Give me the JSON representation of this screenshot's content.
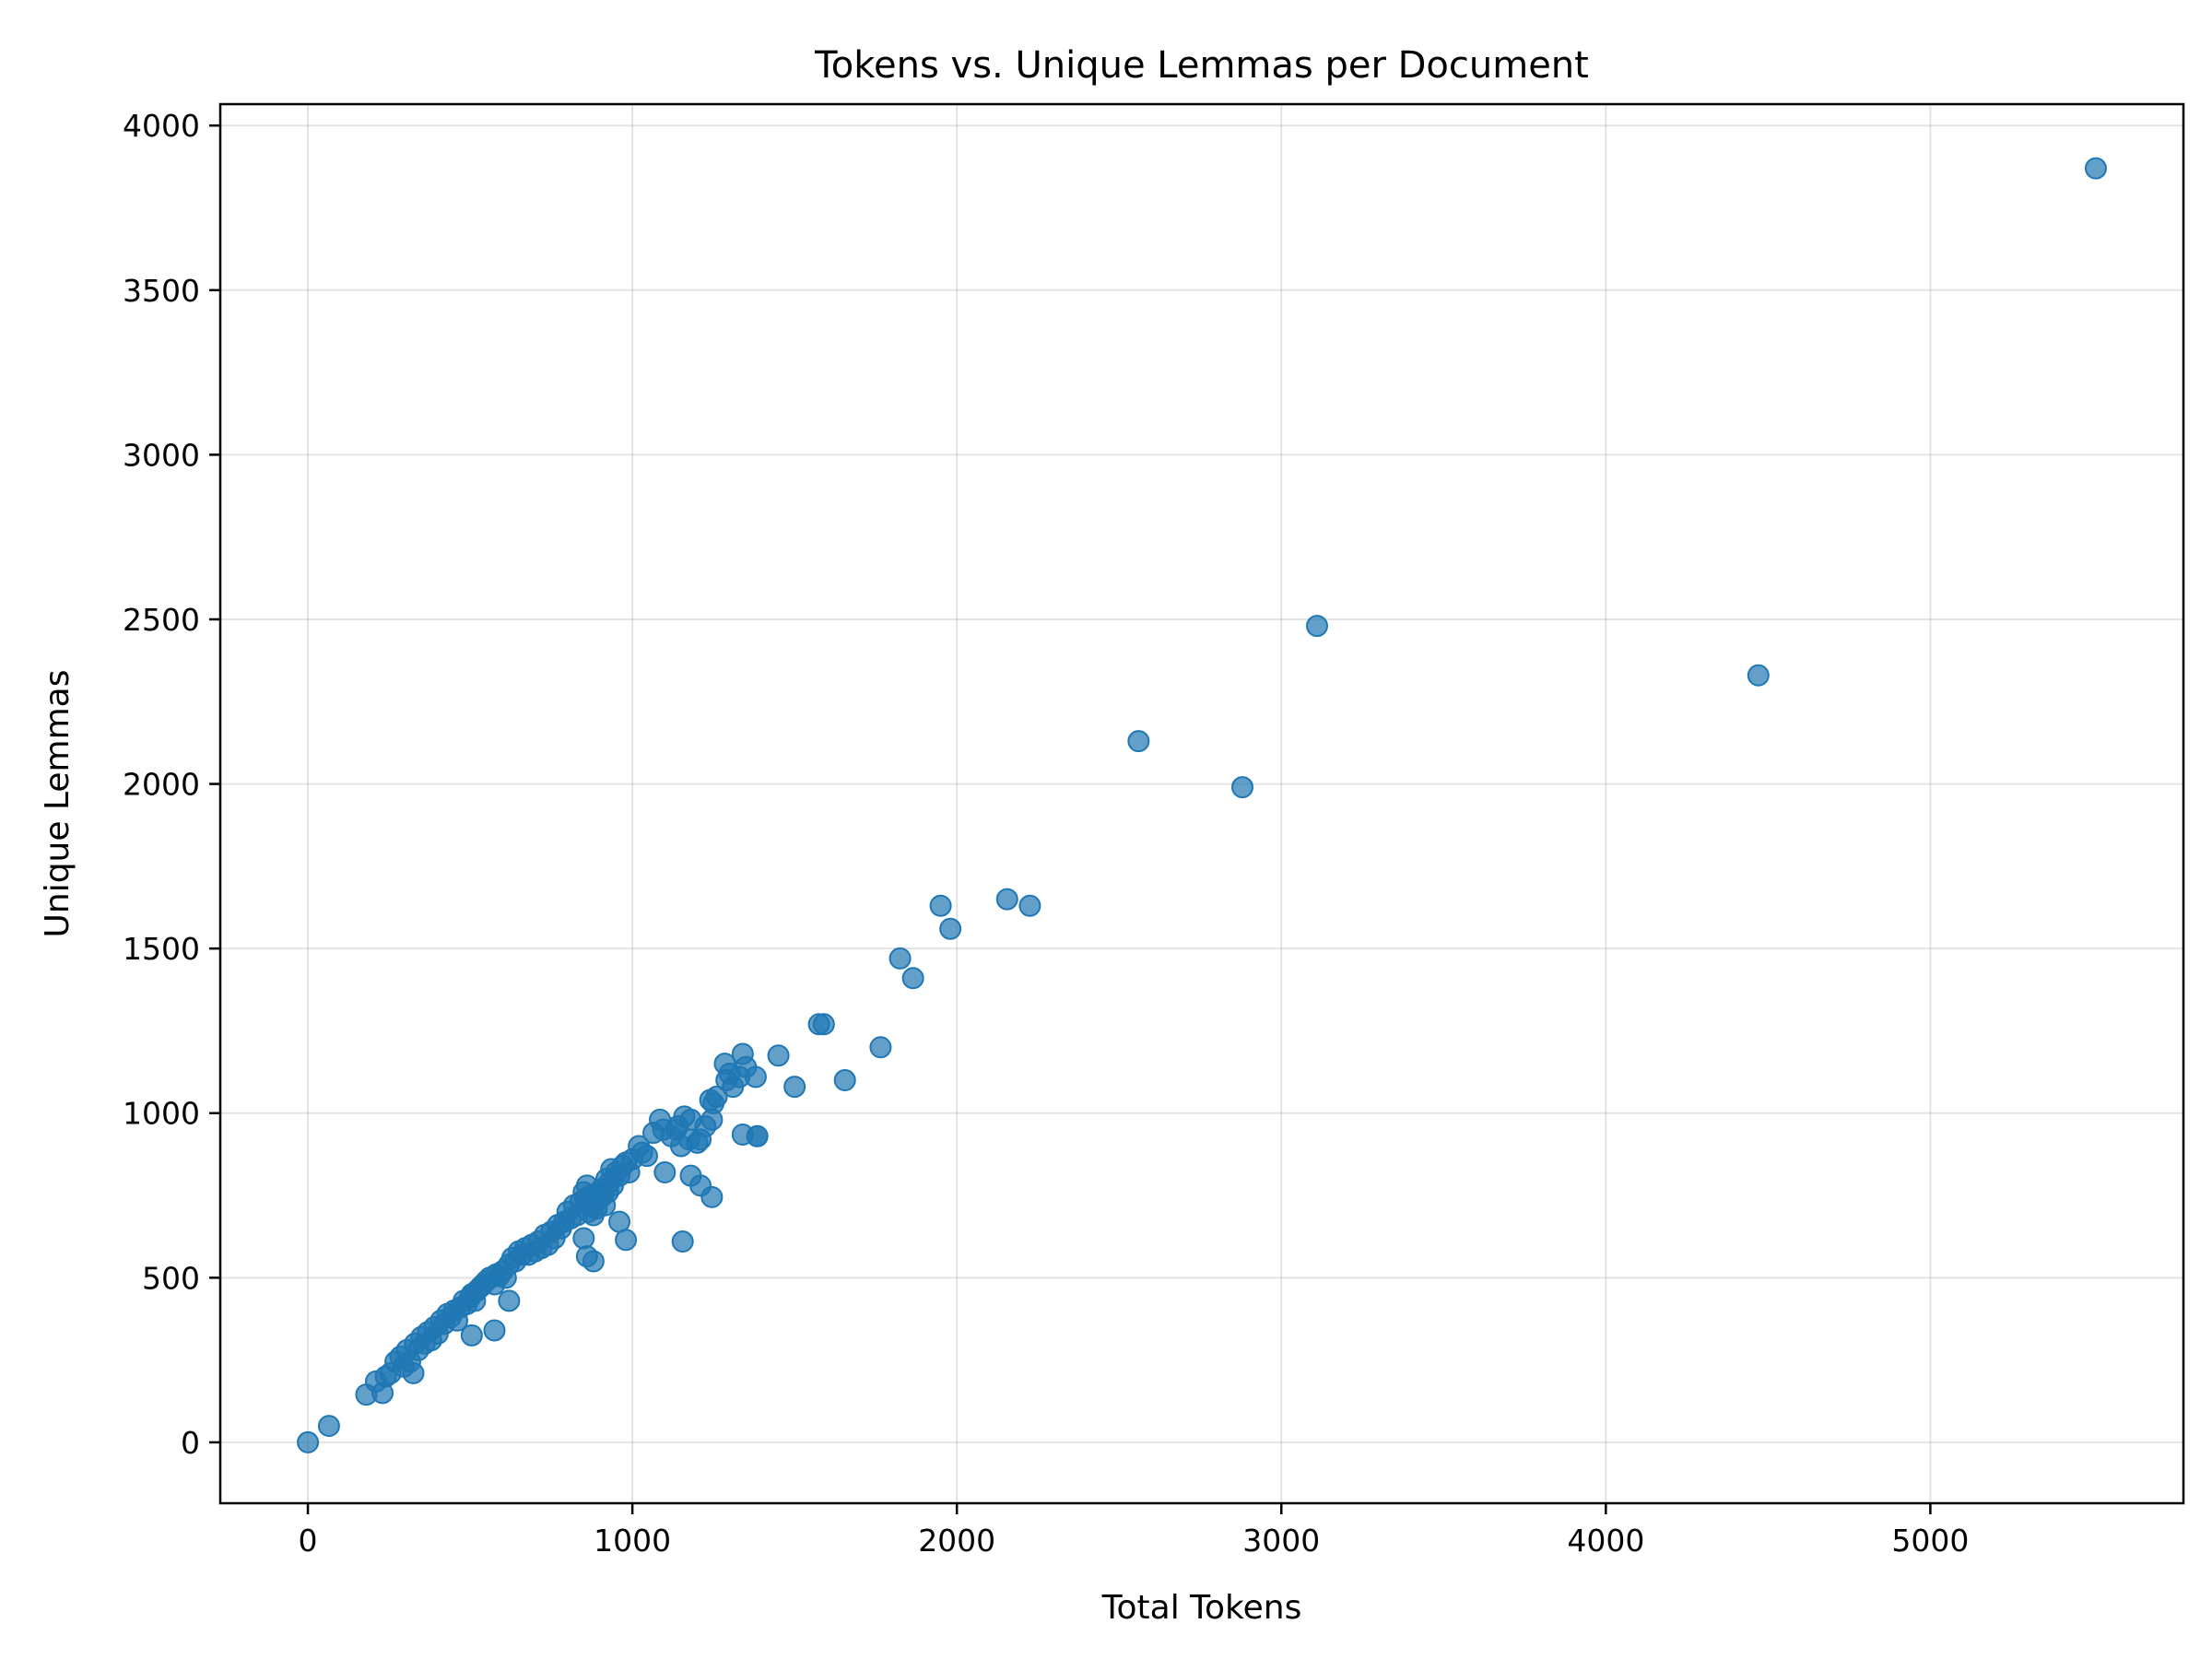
{
  "chart_data": {
    "type": "scatter",
    "title": "Tokens vs. Unique Lemmas per Document",
    "xlabel": "Total Tokens",
    "ylabel": "Unique Lemmas",
    "xlim": [
      -270,
      5780
    ],
    "ylim": [
      -185,
      4065
    ],
    "xticks": [
      0,
      1000,
      2000,
      3000,
      4000,
      5000
    ],
    "yticks": [
      0,
      500,
      1000,
      1500,
      2000,
      2500,
      3000,
      3500,
      4000
    ],
    "grid": true,
    "marker_color": "#1f77b4",
    "marker_alpha": 0.7,
    "x": [
      0,
      65,
      180,
      210,
      230,
      240,
      255,
      270,
      285,
      295,
      305,
      315,
      330,
      340,
      350,
      360,
      370,
      380,
      390,
      400,
      410,
      420,
      430,
      440,
      450,
      460,
      470,
      480,
      490,
      500,
      505,
      515,
      520,
      530,
      540,
      550,
      560,
      575,
      580,
      590,
      600,
      610,
      620,
      630,
      640,
      650,
      660,
      670,
      680,
      690,
      700,
      710,
      720,
      730,
      740,
      750,
      760,
      770,
      780,
      790,
      800,
      810,
      820,
      830,
      840,
      850,
      855,
      860,
      865,
      870,
      875,
      880,
      885,
      890,
      895,
      900,
      905,
      910,
      915,
      920,
      925,
      930,
      935,
      940,
      950,
      960,
      970,
      980,
      990,
      1000,
      1020,
      1030,
      1045,
      1065,
      1085,
      1095,
      1100,
      1120,
      1140,
      1150,
      1160,
      1175,
      1180,
      1200,
      1210,
      1225,
      1240,
      1245,
      1250,
      1260,
      1285,
      1290,
      1300,
      1310,
      1330,
      1340,
      1350,
      1380,
      1385,
      1450,
      1500,
      1575,
      1590,
      1655,
      1765,
      1825,
      1865,
      1950,
      1980,
      2155,
      2225,
      2560,
      2880,
      3110,
      4470,
      5510,
      325,
      575,
      505,
      620,
      860,
      880,
      850,
      1155,
      980,
      960,
      1210,
      1245,
      1135,
      1340,
      1385,
      1180
    ],
    "y": [
      0,
      50,
      145,
      185,
      150,
      200,
      210,
      245,
      260,
      230,
      280,
      245,
      300,
      280,
      320,
      300,
      335,
      310,
      350,
      330,
      370,
      360,
      390,
      380,
      400,
      370,
      410,
      430,
      420,
      440,
      450,
      430,
      460,
      470,
      480,
      490,
      500,
      480,
      510,
      505,
      520,
      500,
      540,
      560,
      550,
      580,
      570,
      590,
      570,
      600,
      580,
      610,
      590,
      630,
      600,
      640,
      620,
      660,
      650,
      670,
      700,
      680,
      720,
      690,
      730,
      760,
      740,
      780,
      700,
      720,
      750,
      690,
      730,
      710,
      760,
      740,
      770,
      750,
      720,
      800,
      760,
      790,
      830,
      780,
      820,
      810,
      840,
      850,
      820,
      860,
      900,
      880,
      870,
      940,
      980,
      950,
      820,
      930,
      960,
      900,
      990,
      920,
      980,
      910,
      920,
      960,
      1040,
      980,
      1030,
      1050,
      1150,
      1100,
      1120,
      1080,
      1110,
      1180,
      1140,
      1110,
      930,
      1175,
      1080,
      1270,
      1270,
      1100,
      1200,
      1470,
      1410,
      1630,
      1560,
      1650,
      1630,
      2130,
      1990,
      2480,
      2330,
      3870,
      210,
      340,
      325,
      430,
      565,
      550,
      620,
      610,
      615,
      670,
      780,
      745,
      950,
      935,
      930,
      810
    ]
  }
}
